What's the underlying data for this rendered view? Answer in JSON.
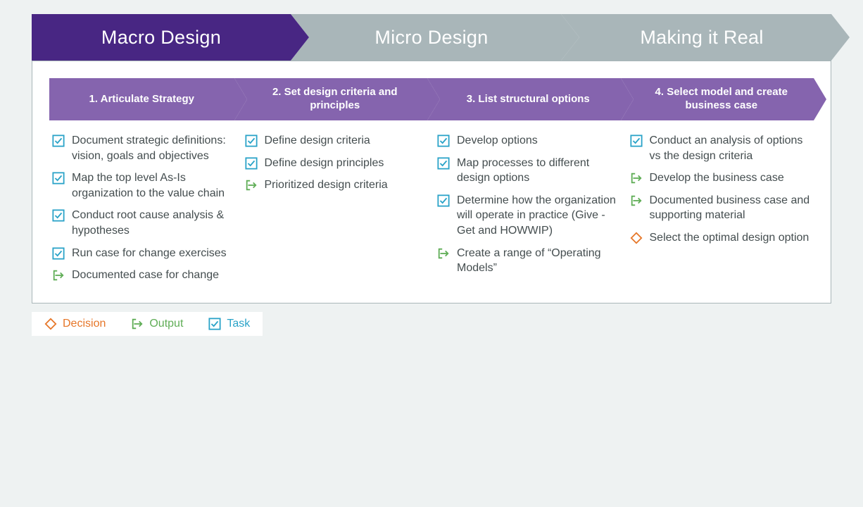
{
  "colors": {
    "page_bg": "#eef2f2",
    "top_active": "#482683",
    "top_inactive": "#a9b6b9",
    "step_bg": "#8564ae",
    "text": "#444d4f",
    "task": "#2aa3c8",
    "output": "#5fad56",
    "decision": "#e67628"
  },
  "top_tabs": [
    {
      "label": "Macro Design",
      "active": true
    },
    {
      "label": "Micro Design",
      "active": false
    },
    {
      "label": "Making it Real",
      "active": false
    }
  ],
  "steps": [
    {
      "title": "1. Articulate Strategy",
      "items": [
        {
          "kind": "task",
          "text": "Document strategic definitions: vision, goals and objectives"
        },
        {
          "kind": "task",
          "text": "Map the top level As-Is organization to the value chain"
        },
        {
          "kind": "task",
          "text": "Conduct root cause analysis & hypotheses"
        },
        {
          "kind": "task",
          "text": "Run case for change exercises"
        },
        {
          "kind": "output",
          "text": "Documented case for change"
        }
      ]
    },
    {
      "title": "2. Set design criteria and principles",
      "items": [
        {
          "kind": "task",
          "text": "Define design criteria"
        },
        {
          "kind": "task",
          "text": "Define design principles"
        },
        {
          "kind": "output",
          "text": "Prioritized design criteria"
        }
      ]
    },
    {
      "title": "3. List structural options",
      "items": [
        {
          "kind": "task",
          "text": "Develop options"
        },
        {
          "kind": "task",
          "text": "Map processes to different design options"
        },
        {
          "kind": "task",
          "text": "Determine how the organization will operate in practice (Give - Get and HOWWIP)"
        },
        {
          "kind": "output",
          "text": "Create a range of “Operating Models”"
        }
      ]
    },
    {
      "title": "4. Select model and create business case",
      "items": [
        {
          "kind": "task",
          "text": "Conduct an analysis of options vs the design criteria"
        },
        {
          "kind": "output",
          "text": "Develop the business case"
        },
        {
          "kind": "output",
          "text": "Documented business case and supporting material"
        },
        {
          "kind": "decision",
          "text": "Select the optimal design option"
        }
      ]
    }
  ],
  "legend": {
    "decision": "Decision",
    "output": "Output",
    "task": "Task"
  }
}
